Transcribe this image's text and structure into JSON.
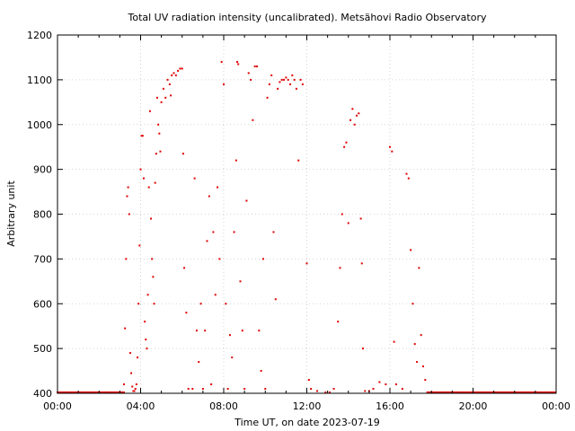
{
  "chart_data": {
    "type": "scatter",
    "title": "Total UV radiation intensity (uncalibrated). Metsähovi Radio Observatory",
    "xlabel": "Time UT, on date 2023-07-19",
    "ylabel": "Arbitrary unit",
    "xlim": [
      0,
      24
    ],
    "ylim": [
      400,
      1200
    ],
    "x_ticks": [
      {
        "value": 0,
        "label": "00:00"
      },
      {
        "value": 4,
        "label": "04:00"
      },
      {
        "value": 8,
        "label": "08:00"
      },
      {
        "value": 12,
        "label": "12:00"
      },
      {
        "value": 16,
        "label": "16:00"
      },
      {
        "value": 20,
        "label": "20:00"
      },
      {
        "value": 24,
        "label": "00:00"
      }
    ],
    "y_ticks": [
      {
        "value": 400,
        "label": "400"
      },
      {
        "value": 500,
        "label": "500"
      },
      {
        "value": 600,
        "label": "600"
      },
      {
        "value": 700,
        "label": "700"
      },
      {
        "value": 800,
        "label": "800"
      },
      {
        "value": 900,
        "label": "900"
      },
      {
        "value": 1000,
        "label": "1000"
      },
      {
        "value": 1100,
        "label": "1100"
      },
      {
        "value": 1200,
        "label": "1200"
      }
    ],
    "grid": true,
    "marker_color": "#e00000",
    "baseline": {
      "value": 402,
      "ranges": [
        [
          0,
          3.2
        ],
        [
          17.8,
          24
        ]
      ]
    },
    "series": [
      {
        "points": [
          [
            3.2,
            420
          ],
          [
            3.25,
            545
          ],
          [
            3.3,
            700
          ],
          [
            3.35,
            840
          ],
          [
            3.4,
            860
          ],
          [
            3.45,
            800
          ],
          [
            3.5,
            490
          ],
          [
            3.55,
            445
          ],
          [
            3.6,
            415
          ],
          [
            3.65,
            405
          ],
          [
            3.7,
            405
          ],
          [
            3.75,
            410
          ],
          [
            3.8,
            420
          ],
          [
            3.85,
            480
          ],
          [
            3.9,
            600
          ],
          [
            3.95,
            730
          ],
          [
            4.0,
            900
          ],
          [
            4.05,
            975
          ],
          [
            4.1,
            975
          ],
          [
            4.15,
            880
          ],
          [
            4.2,
            560
          ],
          [
            4.25,
            520
          ],
          [
            4.3,
            500
          ],
          [
            4.35,
            620
          ],
          [
            4.4,
            860
          ],
          [
            4.45,
            1030
          ],
          [
            4.5,
            790
          ],
          [
            4.55,
            700
          ],
          [
            4.6,
            660
          ],
          [
            4.65,
            600
          ],
          [
            4.7,
            870
          ],
          [
            4.75,
            935
          ],
          [
            4.8,
            1060
          ],
          [
            4.85,
            1000
          ],
          [
            4.9,
            980
          ],
          [
            4.95,
            940
          ],
          [
            5.0,
            1050
          ],
          [
            5.1,
            1080
          ],
          [
            5.2,
            1060
          ],
          [
            5.3,
            1100
          ],
          [
            5.4,
            1090
          ],
          [
            5.45,
            1065
          ],
          [
            5.5,
            1110
          ],
          [
            5.6,
            1115
          ],
          [
            5.7,
            1110
          ],
          [
            5.8,
            1120
          ],
          [
            5.9,
            1125
          ],
          [
            6.0,
            1125
          ],
          [
            6.05,
            935
          ],
          [
            6.1,
            680
          ],
          [
            6.2,
            580
          ],
          [
            6.3,
            410
          ],
          [
            6.5,
            410
          ],
          [
            6.6,
            880
          ],
          [
            6.7,
            540
          ],
          [
            6.8,
            470
          ],
          [
            6.9,
            600
          ],
          [
            7.0,
            410
          ],
          [
            7.1,
            540
          ],
          [
            7.2,
            740
          ],
          [
            7.3,
            840
          ],
          [
            7.4,
            420
          ],
          [
            7.5,
            760
          ],
          [
            7.6,
            620
          ],
          [
            7.7,
            860
          ],
          [
            7.8,
            700
          ],
          [
            7.9,
            1140
          ],
          [
            8.0,
            1090
          ],
          [
            8.1,
            600
          ],
          [
            8.2,
            410
          ],
          [
            8.3,
            530
          ],
          [
            8.4,
            480
          ],
          [
            8.5,
            760
          ],
          [
            8.6,
            920
          ],
          [
            8.65,
            1140
          ],
          [
            8.7,
            1135
          ],
          [
            8.8,
            650
          ],
          [
            8.9,
            540
          ],
          [
            9.0,
            410
          ],
          [
            9.1,
            830
          ],
          [
            9.2,
            1115
          ],
          [
            9.3,
            1100
          ],
          [
            9.4,
            1010
          ],
          [
            9.5,
            1130
          ],
          [
            9.6,
            1130
          ],
          [
            9.7,
            540
          ],
          [
            9.8,
            450
          ],
          [
            9.9,
            700
          ],
          [
            10.0,
            410
          ],
          [
            10.1,
            1060
          ],
          [
            10.2,
            1090
          ],
          [
            10.3,
            1110
          ],
          [
            10.4,
            760
          ],
          [
            10.5,
            610
          ],
          [
            10.6,
            1080
          ],
          [
            10.7,
            1095
          ],
          [
            10.8,
            1100
          ],
          [
            10.9,
            1100
          ],
          [
            11.0,
            1105
          ],
          [
            11.1,
            1100
          ],
          [
            11.2,
            1090
          ],
          [
            11.3,
            1110
          ],
          [
            11.4,
            1100
          ],
          [
            11.5,
            1080
          ],
          [
            11.6,
            920
          ],
          [
            11.7,
            1100
          ],
          [
            11.8,
            1090
          ],
          [
            12.0,
            690
          ],
          [
            12.1,
            430
          ],
          [
            12.2,
            410
          ],
          [
            12.5,
            405
          ],
          [
            12.9,
            402
          ],
          [
            13.1,
            402
          ],
          [
            13.3,
            410
          ],
          [
            13.5,
            560
          ],
          [
            13.6,
            680
          ],
          [
            13.7,
            800
          ],
          [
            13.8,
            950
          ],
          [
            13.9,
            960
          ],
          [
            14.0,
            780
          ],
          [
            14.1,
            1010
          ],
          [
            14.2,
            1035
          ],
          [
            14.3,
            1000
          ],
          [
            14.4,
            1020
          ],
          [
            14.5,
            1025
          ],
          [
            14.6,
            790
          ],
          [
            14.65,
            690
          ],
          [
            14.7,
            500
          ],
          [
            14.8,
            405
          ],
          [
            15.0,
            405
          ],
          [
            15.2,
            410
          ],
          [
            15.5,
            425
          ],
          [
            15.8,
            420
          ],
          [
            16.0,
            950
          ],
          [
            16.1,
            940
          ],
          [
            16.2,
            515
          ],
          [
            16.3,
            420
          ],
          [
            16.6,
            410
          ],
          [
            16.8,
            890
          ],
          [
            16.9,
            880
          ],
          [
            17.0,
            720
          ],
          [
            17.1,
            600
          ],
          [
            17.2,
            510
          ],
          [
            17.3,
            470
          ],
          [
            17.4,
            680
          ],
          [
            17.5,
            530
          ],
          [
            17.6,
            460
          ],
          [
            17.7,
            430
          ]
        ]
      }
    ]
  }
}
